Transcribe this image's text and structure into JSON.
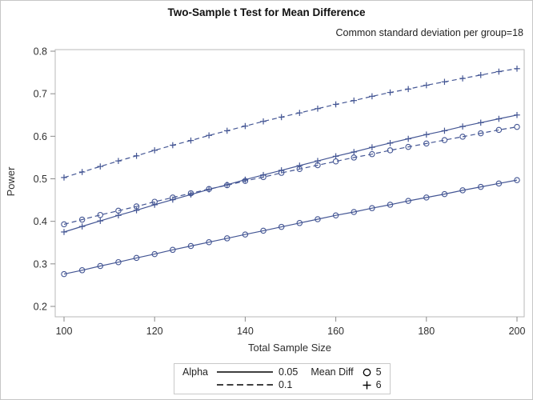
{
  "header": {
    "title": "Two-Sample t Test for Mean Difference",
    "subtitle": "Common standard deviation per group=18"
  },
  "axes": {
    "x_label": "Total Sample Size",
    "y_label": "Power"
  },
  "legend": {
    "alpha_label": "Alpha",
    "alpha_items": [
      {
        "style": "solid",
        "label": "0.05"
      },
      {
        "style": "dashed",
        "label": "0.1"
      }
    ],
    "meandiff_label": "Mean Diff",
    "meandiff_items": [
      {
        "marker": "circle",
        "label": "5"
      },
      {
        "marker": "plus",
        "label": "6"
      }
    ]
  },
  "colors": {
    "series": "#445694",
    "wall_border": "#b8b8b8",
    "tick": "#8a8a8a",
    "text": "#2f2f2f",
    "legend_symbol": "#000000"
  },
  "chart_data": {
    "type": "line",
    "title": "Two-Sample t Test for Mean Difference",
    "subtitle": "Common standard deviation per group=18",
    "xlabel": "Total Sample Size",
    "ylabel": "Power",
    "xlim": [
      100,
      200
    ],
    "ylim": [
      0.2,
      0.8
    ],
    "grid": false,
    "legend_position": "bottom",
    "xticks": [
      100,
      120,
      140,
      160,
      180,
      200
    ],
    "yticks": [
      "0.2",
      "0.3",
      "0.4",
      "0.5",
      "0.6",
      "0.7",
      "0.8"
    ],
    "x": [
      100,
      104,
      108,
      112,
      116,
      120,
      124,
      128,
      132,
      136,
      140,
      144,
      148,
      152,
      156,
      160,
      164,
      168,
      172,
      176,
      180,
      184,
      188,
      192,
      196,
      200
    ],
    "series": [
      {
        "name": "Alpha=0.05, Mean Diff=5",
        "line": "solid",
        "marker": "circle",
        "values": [
          0.276,
          0.285,
          0.295,
          0.304,
          0.314,
          0.323,
          0.333,
          0.342,
          0.351,
          0.36,
          0.369,
          0.378,
          0.387,
          0.396,
          0.405,
          0.414,
          0.422,
          0.431,
          0.439,
          0.448,
          0.456,
          0.464,
          0.473,
          0.481,
          0.489,
          0.497
        ]
      },
      {
        "name": "Alpha=0.05, Mean Diff=6",
        "line": "solid",
        "marker": "plus",
        "values": [
          0.375,
          0.388,
          0.401,
          0.414,
          0.426,
          0.439,
          0.451,
          0.463,
          0.475,
          0.486,
          0.498,
          0.509,
          0.52,
          0.531,
          0.542,
          0.553,
          0.563,
          0.574,
          0.584,
          0.594,
          0.604,
          0.613,
          0.623,
          0.632,
          0.641,
          0.65
        ]
      },
      {
        "name": "Alpha=0.1, Mean Diff=5",
        "line": "dashed",
        "marker": "circle",
        "values": [
          0.393,
          0.404,
          0.415,
          0.425,
          0.435,
          0.446,
          0.456,
          0.466,
          0.476,
          0.485,
          0.495,
          0.504,
          0.514,
          0.523,
          0.532,
          0.541,
          0.55,
          0.558,
          0.567,
          0.575,
          0.583,
          0.591,
          0.599,
          0.607,
          0.615,
          0.622
        ]
      },
      {
        "name": "Alpha=0.1, Mean Diff=6",
        "line": "dashed",
        "marker": "plus",
        "values": [
          0.503,
          0.516,
          0.529,
          0.542,
          0.554,
          0.567,
          0.579,
          0.59,
          0.602,
          0.613,
          0.624,
          0.635,
          0.645,
          0.655,
          0.665,
          0.675,
          0.684,
          0.694,
          0.703,
          0.711,
          0.72,
          0.728,
          0.736,
          0.744,
          0.752,
          0.759
        ]
      }
    ]
  }
}
